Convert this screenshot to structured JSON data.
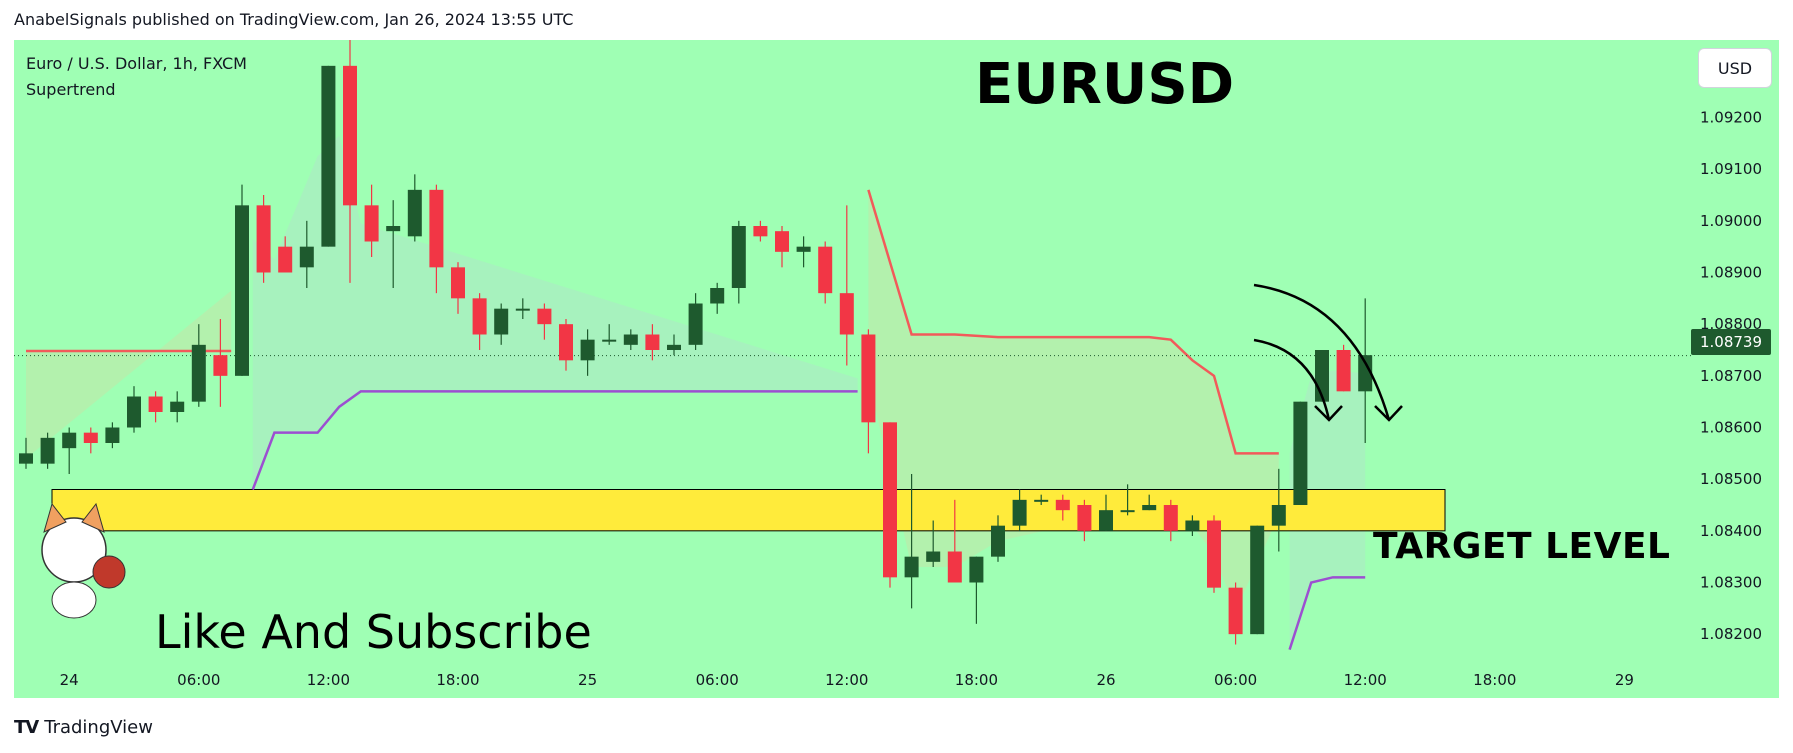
{
  "header": {
    "text": "AnabelSignals published on TradingView.com, Jan 26, 2024 13:55 UTC"
  },
  "symbol_label": "Euro / U.S. Dollar, 1h, FXCM",
  "indicator_label": "Supertrend",
  "currency_button": "USD",
  "footer": {
    "brand": "TradingView"
  },
  "annotations": {
    "title": "EURUSD",
    "target": "TARGET LEVEL",
    "subscribe": "Like And Subscribe"
  },
  "current_price_label": "1.08739",
  "colors": {
    "background": "#9fffb4",
    "bull": "#1e5a2e",
    "bear": "#f23645",
    "supertrend_up": "#9c4fd1",
    "supertrend_down": "#f25a5a",
    "target_zone": "#ffeb3b"
  },
  "chart_data": {
    "type": "candlestick",
    "title": "EURUSD",
    "ylim": [
      1.0815,
      1.0935
    ],
    "y_ticks": [
      "1.09200",
      "1.09100",
      "1.09000",
      "1.08900",
      "1.08800",
      "1.08700",
      "1.08600",
      "1.08500",
      "1.08400",
      "1.08300",
      "1.08200"
    ],
    "y_tick_values": [
      1.092,
      1.091,
      1.09,
      1.089,
      1.088,
      1.087,
      1.086,
      1.085,
      1.084,
      1.083,
      1.082
    ],
    "x_ticks": [
      "24",
      "06:00",
      "12:00",
      "18:00",
      "25",
      "06:00",
      "12:00",
      "18:00",
      "26",
      "06:00",
      "12:00",
      "18:00",
      "29"
    ],
    "x_tick_index": [
      2,
      8,
      14,
      20,
      26,
      32,
      38,
      44,
      50,
      56,
      62,
      68,
      74
    ],
    "current_price": 1.08739,
    "target_zone": {
      "from": 1.084,
      "to": 1.0848
    },
    "candles": [
      [
        1.0853,
        1.0858,
        1.0852,
        1.0855
      ],
      [
        1.0853,
        1.0859,
        1.0852,
        1.0858
      ],
      [
        1.0856,
        1.086,
        1.0851,
        1.0859
      ],
      [
        1.0859,
        1.086,
        1.0855,
        1.0857
      ],
      [
        1.0857,
        1.0861,
        1.0856,
        1.086
      ],
      [
        1.086,
        1.0868,
        1.0859,
        1.0866
      ],
      [
        1.0866,
        1.0867,
        1.0861,
        1.0863
      ],
      [
        1.0863,
        1.0867,
        1.0861,
        1.0865
      ],
      [
        1.0865,
        1.088,
        1.0864,
        1.0876
      ],
      [
        1.0874,
        1.0881,
        1.0864,
        1.087
      ],
      [
        1.087,
        1.0907,
        1.087,
        1.0903
      ],
      [
        1.0903,
        1.0905,
        1.0888,
        1.089
      ],
      [
        1.0895,
        1.0897,
        1.089,
        1.089
      ],
      [
        1.0891,
        1.09,
        1.0887,
        1.0895
      ],
      [
        1.0895,
        1.093,
        1.0895,
        1.093
      ],
      [
        1.093,
        1.0935,
        1.0888,
        1.0903
      ],
      [
        1.0903,
        1.0907,
        1.0893,
        1.0896
      ],
      [
        1.0898,
        1.0904,
        1.0887,
        1.0899
      ],
      [
        1.0897,
        1.0909,
        1.0896,
        1.0906
      ],
      [
        1.0906,
        1.0907,
        1.0886,
        1.0891
      ],
      [
        1.0891,
        1.0892,
        1.0882,
        1.0885
      ],
      [
        1.0885,
        1.0886,
        1.0875,
        1.0878
      ],
      [
        1.0878,
        1.0884,
        1.0876,
        1.0883
      ],
      [
        1.0883,
        1.0885,
        1.0881,
        1.0883
      ],
      [
        1.0883,
        1.0884,
        1.0877,
        1.088
      ],
      [
        1.088,
        1.0881,
        1.0871,
        1.0873
      ],
      [
        1.0873,
        1.0879,
        1.087,
        1.0877
      ],
      [
        1.0877,
        1.088,
        1.0876,
        1.0877
      ],
      [
        1.0876,
        1.0879,
        1.0875,
        1.0878
      ],
      [
        1.0878,
        1.088,
        1.0873,
        1.0875
      ],
      [
        1.0875,
        1.0878,
        1.0874,
        1.0876
      ],
      [
        1.0876,
        1.0886,
        1.0875,
        1.0884
      ],
      [
        1.0884,
        1.0888,
        1.0882,
        1.0887
      ],
      [
        1.0887,
        1.09,
        1.0884,
        1.0899
      ],
      [
        1.0899,
        1.09,
        1.0896,
        1.0897
      ],
      [
        1.0898,
        1.0899,
        1.0891,
        1.0894
      ],
      [
        1.0894,
        1.0897,
        1.0891,
        1.0895
      ],
      [
        1.0895,
        1.0896,
        1.0884,
        1.0886
      ],
      [
        1.0886,
        1.0903,
        1.0872,
        1.0878
      ],
      [
        1.0878,
        1.0879,
        1.0855,
        1.0861
      ],
      [
        1.0861,
        1.0861,
        1.0829,
        1.0831
      ],
      [
        1.0831,
        1.0851,
        1.0825,
        1.0835
      ],
      [
        1.0834,
        1.0842,
        1.0833,
        1.0836
      ],
      [
        1.0836,
        1.0846,
        1.083,
        1.083
      ],
      [
        1.083,
        1.0835,
        1.0822,
        1.0835
      ],
      [
        1.0835,
        1.0843,
        1.0834,
        1.0841
      ],
      [
        1.0841,
        1.0848,
        1.084,
        1.0846
      ],
      [
        1.0846,
        1.0847,
        1.0845,
        1.0846
      ],
      [
        1.0846,
        1.0847,
        1.0842,
        1.0844
      ],
      [
        1.0845,
        1.0846,
        1.0838,
        1.084
      ],
      [
        1.084,
        1.0847,
        1.084,
        1.0844
      ],
      [
        1.0844,
        1.0849,
        1.0843,
        1.0844
      ],
      [
        1.0844,
        1.0847,
        1.0844,
        1.0845
      ],
      [
        1.0845,
        1.0846,
        1.0838,
        1.084
      ],
      [
        1.084,
        1.0843,
        1.0839,
        1.0842
      ],
      [
        1.0842,
        1.0843,
        1.0828,
        1.0829
      ],
      [
        1.0829,
        1.083,
        1.0818,
        1.082
      ],
      [
        1.082,
        1.0841,
        1.082,
        1.0841
      ],
      [
        1.0841,
        1.0852,
        1.0836,
        1.0845
      ],
      [
        1.0845,
        1.0865,
        1.0845,
        1.0865
      ],
      [
        1.0865,
        1.0875,
        1.0865,
        1.0875
      ],
      [
        1.0875,
        1.0876,
        1.0867,
        1.0867
      ],
      [
        1.0867,
        1.0885,
        1.0857,
        1.0874
      ]
    ],
    "supertrend_down": [
      [
        0,
        1.08748
      ],
      [
        9.5,
        1.08748
      ]
    ],
    "supertrend_down_2": [
      [
        39,
        1.0906
      ],
      [
        41,
        1.0878
      ],
      [
        43,
        1.0878
      ],
      [
        45,
        1.08775
      ],
      [
        52,
        1.08775
      ],
      [
        53,
        1.0877
      ],
      [
        54,
        1.0873
      ],
      [
        55,
        1.087
      ],
      [
        56,
        1.0855
      ],
      [
        58,
        1.0855
      ]
    ],
    "supertrend_up": [
      [
        10.5,
        1.0848
      ],
      [
        11.5,
        1.0859
      ],
      [
        13.5,
        1.0859
      ],
      [
        14.5,
        1.0864
      ],
      [
        15.5,
        1.0867
      ],
      [
        38.5,
        1.0867
      ]
    ],
    "supertrend_up_2": [
      [
        58.5,
        1.0817
      ],
      [
        59.5,
        1.083
      ],
      [
        60.5,
        1.0831
      ],
      [
        62,
        1.0831
      ]
    ]
  }
}
